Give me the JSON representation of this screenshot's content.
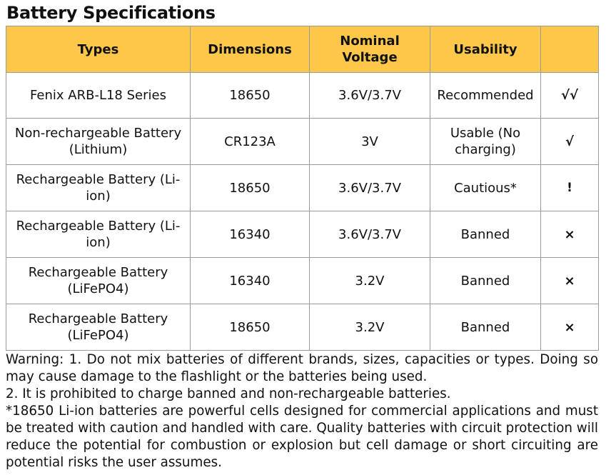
{
  "title": "Battery Specifications",
  "table": {
    "headers": {
      "types": "Types",
      "dimensions": "Dimensions",
      "voltage": "Nominal Voltage",
      "usability": "Usability",
      "symbol": ""
    },
    "rows": [
      {
        "type": "Fenix ARB-L18 Series",
        "dimensions": "18650",
        "voltage": "3.6V/3.7V",
        "usability": "Recommended",
        "symbol": "√√"
      },
      {
        "type": "Non-rechargeable Battery (Lithium)",
        "dimensions": "CR123A",
        "voltage": "3V",
        "usability": "Usable (No charging)",
        "symbol": "√"
      },
      {
        "type": "Rechargeable Battery (Li-ion)",
        "dimensions": "18650",
        "voltage": "3.6V/3.7V",
        "usability": "Cautious*",
        "symbol": "!"
      },
      {
        "type": "Rechargeable Battery (Li-ion)",
        "dimensions": "16340",
        "voltage": "3.6V/3.7V",
        "usability": "Banned",
        "symbol": "×"
      },
      {
        "type": "Rechargeable Battery (LiFePO4)",
        "dimensions": "16340",
        "voltage": "3.2V",
        "usability": "Banned",
        "symbol": "×"
      },
      {
        "type": "Rechargeable Battery (LiFePO4)",
        "dimensions": "18650",
        "voltage": "3.2V",
        "usability": "Banned",
        "symbol": "×"
      }
    ]
  },
  "colors": {
    "header_background": "#fdc84a",
    "border": "#9a9a9a",
    "text": "#111111"
  },
  "warning": {
    "line1": "Warning: 1. Do not mix batteries of different brands, sizes, capacities or types. Doing so may cause damage to the flashlight or the batteries being used.",
    "line2": "2. It is prohibited to charge banned and non-rechargeable batteries.",
    "line3": "*18650 Li-ion batteries are powerful cells designed for commercial applications and must be treated with caution and handled with care.  Quality batteries with circuit protection will reduce the potential for combustion or explosion but cell damage or short circuiting are potential risks the user assumes."
  }
}
